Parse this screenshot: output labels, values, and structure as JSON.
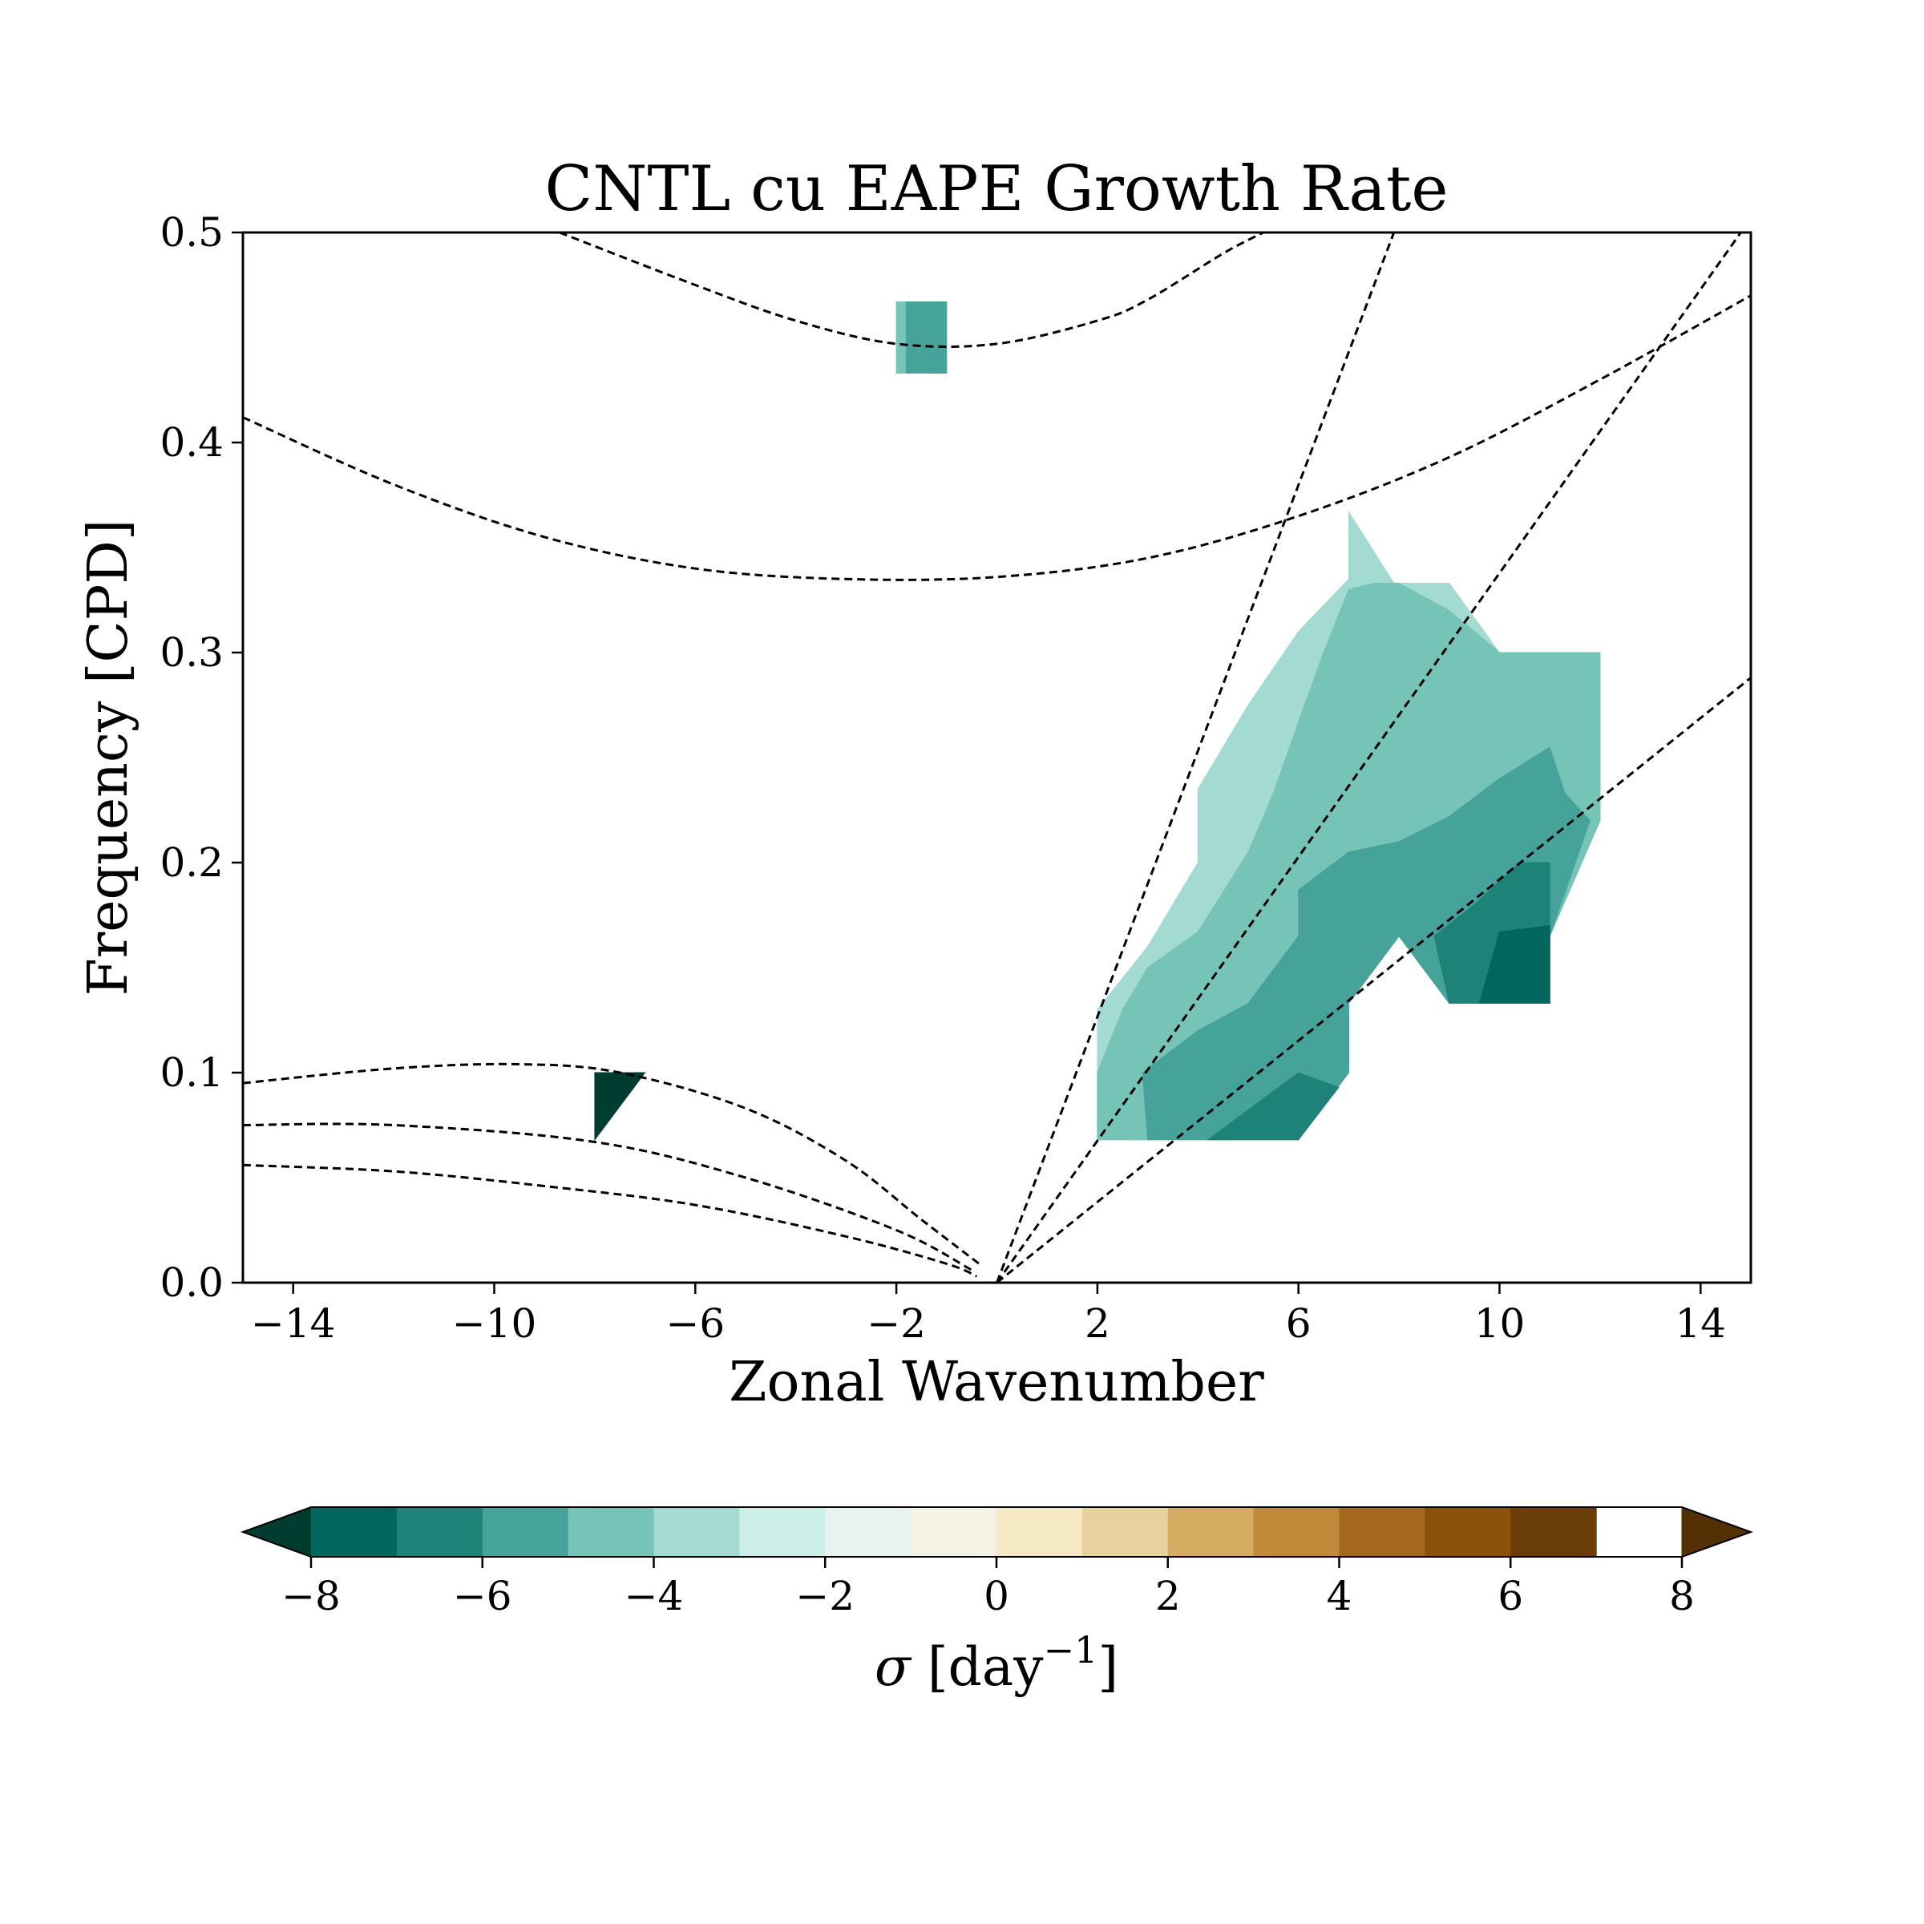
{
  "chart_data": {
    "type": "heatmap",
    "title": "CNTL cu EAPE Growth Rate",
    "xlabel": "Zonal Wavenumber",
    "ylabel": "Frequency [CPD]",
    "xlim": [
      -15,
      15
    ],
    "ylim": [
      0,
      0.5
    ],
    "xticks": [
      -14,
      -10,
      -6,
      -2,
      2,
      6,
      10,
      14
    ],
    "xtick_labels": [
      "−14",
      "−10",
      "−6",
      "−2",
      "2",
      "6",
      "10",
      "14"
    ],
    "yticks": [
      0.0,
      0.1,
      0.2,
      0.3,
      0.4,
      0.5
    ],
    "ytick_labels": [
      "0.0",
      "0.1",
      "0.2",
      "0.3",
      "0.4",
      "0.5"
    ],
    "grid": false,
    "colorbar": {
      "label_symbol": "σ",
      "label_unit": "[day",
      "label_exp": "−1",
      "label_close": "]",
      "min": -8,
      "max": 8,
      "step": 1,
      "extend": "both",
      "ticks": [
        -8,
        -6,
        -4,
        -2,
        0,
        2,
        4,
        6,
        8
      ],
      "tick_labels": [
        "−8",
        "−6",
        "−4",
        "−2",
        "0",
        "2",
        "4",
        "6",
        "8"
      ],
      "colors": [
        "#01665e",
        "#1e8278",
        "#46a39a",
        "#76c3b7",
        "#a3dbd2",
        "#cceee8",
        "#e8f2f0",
        "#f5f1e4",
        "#f5e9c5",
        "#e7d29d",
        "#d5ac61",
        "#c08a3a",
        "#a5671d",
        "#8c510a",
        "#6a3d09"
      ],
      "under_color": "#003c30",
      "over_color": "#543005"
    },
    "contour_regions": [
      {
        "level": -1.5,
        "color": "#a3dbd2",
        "points": [
          [
            2,
            0.068
          ],
          [
            2,
            0.13
          ],
          [
            3,
            0.16
          ],
          [
            4,
            0.2
          ],
          [
            4,
            0.235
          ],
          [
            5,
            0.275
          ],
          [
            6,
            0.31
          ],
          [
            7,
            0.335
          ],
          [
            7,
            0.367
          ],
          [
            7.9,
            0.333
          ],
          [
            9,
            0.333
          ],
          [
            10,
            0.3
          ],
          [
            12,
            0.3
          ],
          [
            12,
            0.22
          ],
          [
            11,
            0.165
          ],
          [
            11,
            0.133
          ],
          [
            9,
            0.133
          ],
          [
            8,
            0.165
          ],
          [
            7,
            0.133
          ],
          [
            7,
            0.1
          ],
          [
            6,
            0.068
          ]
        ]
      },
      {
        "level": -3.5,
        "color": "#76c3b7",
        "points": [
          [
            2,
            0.068
          ],
          [
            2,
            0.1
          ],
          [
            2.5,
            0.13
          ],
          [
            3,
            0.15
          ],
          [
            4,
            0.167
          ],
          [
            5,
            0.205
          ],
          [
            5.5,
            0.233
          ],
          [
            6,
            0.267
          ],
          [
            6.5,
            0.3
          ],
          [
            7,
            0.33
          ],
          [
            7.5,
            0.333
          ],
          [
            8,
            0.333
          ],
          [
            9,
            0.32
          ],
          [
            10,
            0.3
          ],
          [
            12,
            0.3
          ],
          [
            12,
            0.22
          ],
          [
            11,
            0.165
          ],
          [
            11,
            0.133
          ],
          [
            9,
            0.133
          ],
          [
            8,
            0.165
          ],
          [
            7,
            0.133
          ],
          [
            7,
            0.1
          ],
          [
            6,
            0.068
          ]
        ]
      },
      {
        "level": -4.5,
        "color": "#46a39a",
        "points": [
          [
            3,
            0.068
          ],
          [
            2.9,
            0.1
          ],
          [
            4,
            0.12
          ],
          [
            5,
            0.133
          ],
          [
            6,
            0.165
          ],
          [
            6,
            0.187
          ],
          [
            7,
            0.205
          ],
          [
            8,
            0.21
          ],
          [
            9,
            0.222
          ],
          [
            10,
            0.24
          ],
          [
            11,
            0.255
          ],
          [
            11.3,
            0.233
          ],
          [
            11.8,
            0.22
          ],
          [
            11,
            0.165
          ],
          [
            11,
            0.133
          ],
          [
            9,
            0.133
          ],
          [
            8,
            0.165
          ],
          [
            7,
            0.133
          ],
          [
            7,
            0.1
          ],
          [
            6,
            0.068
          ]
        ]
      },
      {
        "level": -5.5,
        "color": "#1e8278",
        "points": [
          [
            4.2,
            0.068
          ],
          [
            6,
            0.1
          ],
          [
            6.8,
            0.093
          ],
          [
            6,
            0.068
          ]
        ]
      },
      {
        "level": -5.5,
        "color": "#1e8278",
        "points": [
          [
            9,
            0.133
          ],
          [
            11,
            0.133
          ],
          [
            11,
            0.2
          ],
          [
            10.4,
            0.2
          ],
          [
            9.5,
            0.18
          ],
          [
            8.7,
            0.165
          ]
        ]
      },
      {
        "level": -6.5,
        "color": "#01665e",
        "points": [
          [
            9.6,
            0.133
          ],
          [
            11,
            0.133
          ],
          [
            11,
            0.17
          ],
          [
            10,
            0.167
          ]
        ]
      },
      {
        "level": -8.5,
        "color": "#003c30",
        "points": [
          [
            -8,
            0.068
          ],
          [
            -8,
            0.1
          ],
          [
            -7,
            0.1
          ]
        ]
      },
      {
        "level": -3.5,
        "color": "#76c3b7",
        "points": [
          [
            -2,
            0.433
          ],
          [
            -2,
            0.467
          ],
          [
            -1.8,
            0.467
          ],
          [
            -1.8,
            0.433
          ]
        ]
      },
      {
        "level": -4.5,
        "color": "#46a39a",
        "points": [
          [
            -1.8,
            0.433
          ],
          [
            -1.8,
            0.467
          ],
          [
            -1,
            0.467
          ],
          [
            -1,
            0.433
          ]
        ]
      }
    ],
    "dispersion_curves": [
      {
        "points": [
          [
            -8.7,
            0.5
          ],
          [
            -6,
            0.475
          ],
          [
            -4,
            0.458
          ],
          [
            -2,
            0.447
          ],
          [
            0,
            0.447
          ],
          [
            2,
            0.458
          ],
          [
            3,
            0.468
          ],
          [
            4.5,
            0.49
          ],
          [
            5.3,
            0.5
          ]
        ]
      },
      {
        "points": [
          [
            -15,
            0.412
          ],
          [
            -12,
            0.38
          ],
          [
            -9,
            0.355
          ],
          [
            -6,
            0.34
          ],
          [
            -3,
            0.335
          ],
          [
            0,
            0.336
          ],
          [
            3,
            0.345
          ],
          [
            6,
            0.365
          ],
          [
            9,
            0.393
          ],
          [
            12,
            0.43
          ],
          [
            15,
            0.47
          ]
        ]
      },
      {
        "points": [
          [
            -15,
            0.095
          ],
          [
            -12,
            0.102
          ],
          [
            -9.5,
            0.104
          ],
          [
            -7.5,
            0.1
          ],
          [
            -5,
            0.083
          ],
          [
            -3,
            0.058
          ],
          [
            -1.5,
            0.03
          ],
          [
            -0.3,
            0.008
          ]
        ]
      },
      {
        "points": [
          [
            -15,
            0.075
          ],
          [
            -12,
            0.075
          ],
          [
            -8,
            0.067
          ],
          [
            -5,
            0.05
          ],
          [
            -2,
            0.025
          ],
          [
            -0.5,
            0.006
          ]
        ]
      },
      {
        "points": [
          [
            -15,
            0.056
          ],
          [
            -12,
            0.053
          ],
          [
            -9,
            0.046
          ],
          [
            -6,
            0.037
          ],
          [
            -3,
            0.022
          ],
          [
            -1,
            0.009
          ],
          [
            -0.4,
            0.003
          ]
        ]
      },
      {
        "points": [
          [
            0,
            0
          ],
          [
            7.9,
            0.5
          ]
        ]
      },
      {
        "points": [
          [
            0,
            0
          ],
          [
            14.8,
            0.5
          ]
        ]
      },
      {
        "points": [
          [
            0,
            0
          ],
          [
            15,
            0.288
          ]
        ]
      }
    ]
  }
}
